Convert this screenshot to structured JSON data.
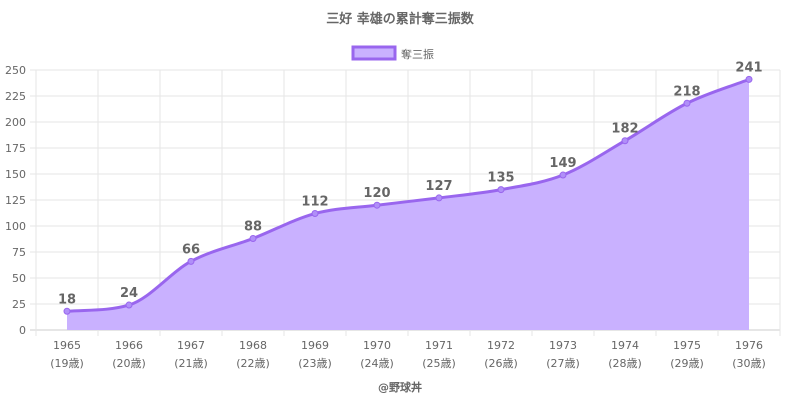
{
  "chart_data": {
    "type": "area",
    "title": "三好 幸雄の累計奪三振数",
    "legend": {
      "position": "top",
      "entries": [
        "奪三振"
      ]
    },
    "categories": [
      "1965",
      "1966",
      "1967",
      "1968",
      "1969",
      "1970",
      "1971",
      "1972",
      "1973",
      "1974",
      "1975",
      "1976"
    ],
    "category_sublabels": [
      "(19歳)",
      "(20歳)",
      "(21歳)",
      "(22歳)",
      "(23歳)",
      "(24歳)",
      "(25歳)",
      "(26歳)",
      "(27歳)",
      "(28歳)",
      "(29歳)",
      "(30歳)"
    ],
    "series": [
      {
        "name": "奪三振",
        "values": [
          18,
          24,
          66,
          88,
          112,
          120,
          127,
          135,
          149,
          182,
          218,
          241
        ]
      }
    ],
    "ylim": [
      0,
      250
    ],
    "yticks": [
      0,
      25,
      50,
      75,
      100,
      125,
      150,
      175,
      200,
      225,
      250
    ],
    "grid": true,
    "colors": {
      "line": "#9966ee",
      "fill": "#c9b1ff",
      "point": "#b08ff8",
      "grid": "#e6e6e6",
      "text": "#666666"
    }
  },
  "footer": "@野球丼"
}
